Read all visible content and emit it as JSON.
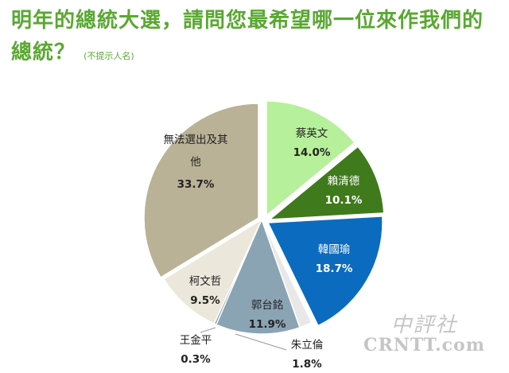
{
  "chart_data": {
    "type": "pie",
    "title": "明年的總統大選，請問您最希望哪一位來作我們的總統？",
    "subtitle": "(不提示人名)",
    "slices": [
      {
        "label": "蔡英文",
        "value": 14.0,
        "value_text": "14.0%",
        "color": "#b6f09a",
        "text_color": "#222222"
      },
      {
        "label": "賴清德",
        "value": 10.1,
        "value_text": "10.1%",
        "color": "#3f7a1c",
        "text_color": "#ffffff"
      },
      {
        "label": "韓國瑜",
        "value": 18.7,
        "value_text": "18.7%",
        "color": "#0b6bbf",
        "text_color": "#ffffff"
      },
      {
        "label": "朱立倫",
        "value": 1.8,
        "value_text": "1.8%",
        "color": "#e8e8e8",
        "text_color": "#222222"
      },
      {
        "label": "郭台銘",
        "value": 11.9,
        "value_text": "11.9%",
        "color": "#8aa4b4",
        "text_color": "#222222"
      },
      {
        "label": "王金平",
        "value": 0.3,
        "value_text": "0.3%",
        "color": "#6a8a9e",
        "text_color": "#222222"
      },
      {
        "label": "柯文哲",
        "value": 9.5,
        "value_text": "9.5%",
        "color": "#ebe7da",
        "text_color": "#222222"
      },
      {
        "label": "無法選出及其他",
        "value": 33.7,
        "value_text": "33.7%",
        "color": "#b9b296",
        "text_color": "#222222"
      }
    ]
  },
  "watermark": {
    "top": "中評社",
    "bottom": "CRNTT.com"
  }
}
